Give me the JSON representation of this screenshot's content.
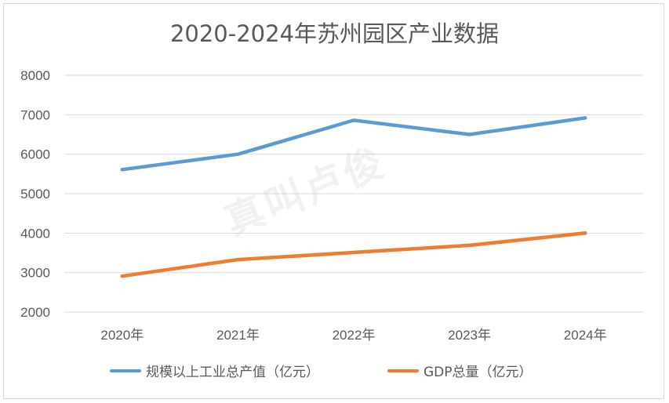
{
  "chart_data": {
    "type": "line",
    "title": "2020-2024年苏州园区产业数据",
    "categories": [
      "2020年",
      "2021年",
      "2022年",
      "2023年",
      "2024年"
    ],
    "ylim": [
      2000,
      8000
    ],
    "yticks": [
      2000,
      3000,
      4000,
      5000,
      6000,
      7000,
      8000
    ],
    "grid": true,
    "legend_position": "bottom",
    "series": [
      {
        "name": "规模以上工业总产值（亿元）",
        "color": "#5b9bd5",
        "values": [
          5610,
          6000,
          6860,
          6500,
          6920
        ]
      },
      {
        "name": "GDP总量（亿元）",
        "color": "#ed7d31",
        "values": [
          2910,
          3330,
          3510,
          3690,
          4000
        ]
      }
    ]
  },
  "watermark": {
    "text": "真叫卢俊"
  }
}
